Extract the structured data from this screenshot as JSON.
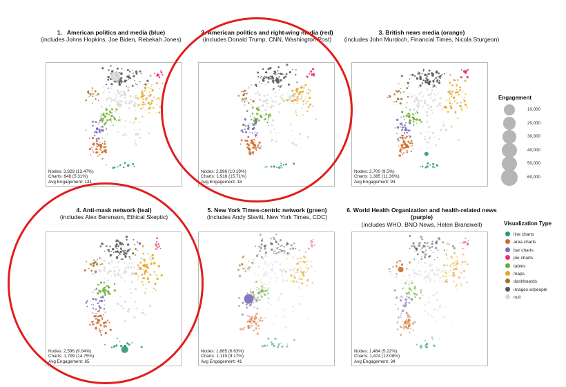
{
  "chart_data": [
    {
      "type": "scatter",
      "panel_number": "1.",
      "title": "American politics and media (blue)",
      "subtitle": "(includes Johns Hopkins, Joe Biden, Rebekah Jones)",
      "highlight_color": "#8a8a8a",
      "stats": {
        "nodes": "Nodes: 3,828 (13.47%)",
        "charts": "Charts: 648 (5.31%)",
        "engagement": "Avg Engagement: 131"
      }
    },
    {
      "type": "scatter",
      "panel_number": "2.",
      "title": "American politics and right-wing media (red)",
      "subtitle": "(includes Donald Trump, CNN, Washington Post)",
      "highlight_color": "#111111",
      "stats": {
        "nodes": "Nodes: 2,896 (10.19%)",
        "charts": "Charts: 1,916 (15.71%)",
        "engagement": "Avg Engagement: 18"
      }
    },
    {
      "type": "scatter",
      "panel_number": "3.",
      "title": "British news media (orange)",
      "subtitle": "(includes John Murdoch, Financial Times, Nicola Sturgeon)",
      "highlight_color": "#2a9a6c",
      "stats": {
        "nodes": "Nodes: 2,700 (9.5%)",
        "charts": "Charts: 1,385 (11.36%)",
        "engagement": "Avg Engagement: 94"
      }
    },
    {
      "type": "scatter",
      "panel_number": "4.",
      "title": "Anti-mask network (teal)",
      "subtitle": "(includes Alex Berenson, Ethical Skeptic)",
      "highlight_color": "#2a9a6c",
      "stats": {
        "nodes": "Nodes: 2,596 (9.04%)",
        "charts": "Charts: 1,799 (14.75%)",
        "engagement": "Avg Engagement: 65"
      }
    },
    {
      "type": "scatter",
      "panel_number": "5.",
      "title": "New York Times-centric network (green)",
      "subtitle": "(includes Andy Slavitt, New York Times, CDC)",
      "highlight_color": "#7a6bb8",
      "stats": {
        "nodes": "Nodes: 1,885 (6.63%)",
        "charts": "Charts: 1,119 (9.17%)",
        "engagement": "Avg Engagement: 41"
      }
    },
    {
      "type": "scatter",
      "panel_number": "6.",
      "title": "World Health Organization and health-related news (purple)",
      "subtitle": "(includes WHO, BNO News, Helen Branswell)",
      "highlight_color": "#d06a28",
      "stats": {
        "nodes": "Nodes: 1,484 (5.22%)",
        "charts": "Charts: 1,474 (12.08%)",
        "engagement": "Avg Engagement: 34"
      }
    }
  ],
  "legend_engagement": {
    "title": "Engagement",
    "items": [
      {
        "label": "10,000",
        "value": 10000
      },
      {
        "label": "20,000",
        "value": 20000
      },
      {
        "label": "30,000",
        "value": 30000
      },
      {
        "label": "40,000",
        "value": 40000
      },
      {
        "label": "50,000",
        "value": 50000
      },
      {
        "label": "60,000",
        "value": 60000
      }
    ]
  },
  "legend_type": {
    "title": "Visualization Type",
    "items": [
      {
        "label": "line charts",
        "color": "#2a9a6c"
      },
      {
        "label": "area charts",
        "color": "#d06a28"
      },
      {
        "label": "bar charts",
        "color": "#7a6bb8"
      },
      {
        "label": "pie charts",
        "color": "#e0307a"
      },
      {
        "label": "tables",
        "color": "#6aae2a"
      },
      {
        "label": "maps",
        "color": "#e6a823"
      },
      {
        "label": "dashboards",
        "color": "#a07228"
      },
      {
        "label": "images w/people",
        "color": "#555555"
      },
      {
        "label": "null",
        "color": "#d9d9d9"
      }
    ]
  }
}
